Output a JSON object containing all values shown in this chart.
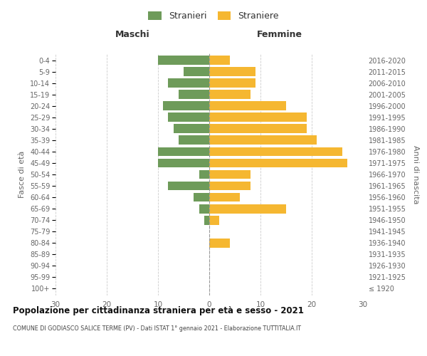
{
  "age_groups": [
    "100+",
    "95-99",
    "90-94",
    "85-89",
    "80-84",
    "75-79",
    "70-74",
    "65-69",
    "60-64",
    "55-59",
    "50-54",
    "45-49",
    "40-44",
    "35-39",
    "30-34",
    "25-29",
    "20-24",
    "15-19",
    "10-14",
    "5-9",
    "0-4"
  ],
  "birth_years": [
    "≤ 1920",
    "1921-1925",
    "1926-1930",
    "1931-1935",
    "1936-1940",
    "1941-1945",
    "1946-1950",
    "1951-1955",
    "1956-1960",
    "1961-1965",
    "1966-1970",
    "1971-1975",
    "1976-1980",
    "1981-1985",
    "1986-1990",
    "1991-1995",
    "1996-2000",
    "2001-2005",
    "2006-2010",
    "2011-2015",
    "2016-2020"
  ],
  "maschi": [
    0,
    0,
    0,
    0,
    0,
    0,
    1,
    2,
    3,
    8,
    2,
    10,
    10,
    6,
    7,
    8,
    9,
    6,
    8,
    5,
    10
  ],
  "femmine": [
    0,
    0,
    0,
    0,
    4,
    0,
    2,
    15,
    6,
    8,
    8,
    27,
    26,
    21,
    19,
    19,
    15,
    8,
    9,
    9,
    4
  ],
  "maschi_color": "#6e9b5a",
  "femmine_color": "#f5b731",
  "title": "Popolazione per cittadinanza straniera per età e sesso - 2021",
  "subtitle": "COMUNE DI GODIASCO SALICE TERME (PV) - Dati ISTAT 1° gennaio 2021 - Elaborazione TUTTITALIA.IT",
  "xlabel_left": "Maschi",
  "xlabel_right": "Femmine",
  "ylabel_left": "Fasce di età",
  "ylabel_right": "Anni di nascita",
  "legend_stranieri": "Stranieri",
  "legend_straniere": "Straniere",
  "xlim": 30,
  "background_color": "#ffffff",
  "grid_color": "#cccccc",
  "bar_height": 0.8
}
